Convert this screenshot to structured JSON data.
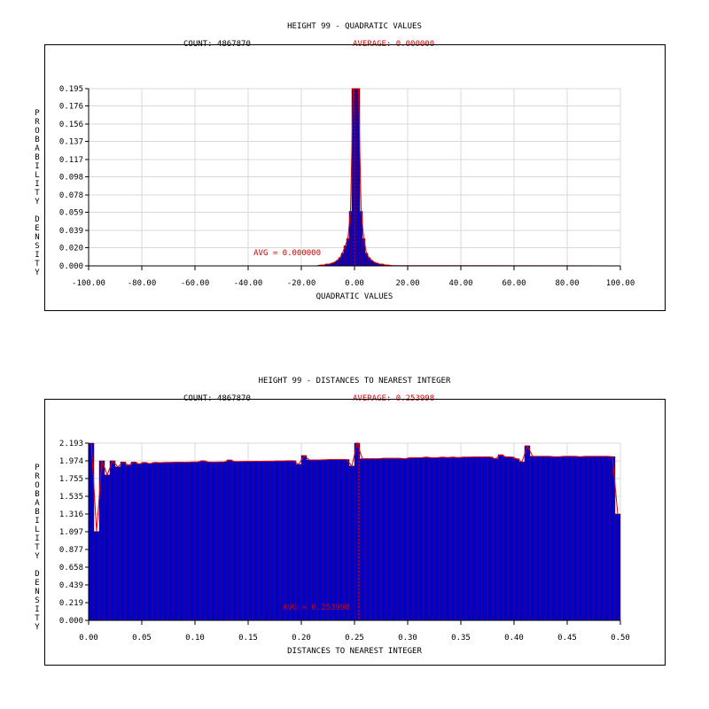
{
  "colors": {
    "bar_fill": "#0000c8",
    "bar_edge": "#800000",
    "curve": "#e00000",
    "grid": "#d8d8d8",
    "frame": "#000000",
    "avg_text": "#d00000"
  },
  "chart_data": [
    {
      "type": "bar",
      "title": "HEIGHT 99 - QUADRATIC VALUES",
      "count_label": "COUNT: 4867870",
      "average_label": "AVERAGE: 0.000000",
      "avg_marker_label": "AVG = 0.000000",
      "avg_value": 0.0,
      "xlabel": "QUADRATIC VALUES",
      "ylabel": "PROBABILITY DENSITY",
      "ylabel_words": [
        "PROBABILITY",
        "DENSITY"
      ],
      "xlim": [
        -100,
        100
      ],
      "ylim": [
        0,
        0.195
      ],
      "x_ticks": [
        -100,
        -80,
        -60,
        -40,
        -20,
        0,
        20,
        40,
        60,
        80,
        100
      ],
      "x_tick_labels": [
        "-100.00",
        "-80.00",
        "-60.00",
        "-40.00",
        "-20.00",
        "0.00",
        "20.00",
        "40.00",
        "60.00",
        "80.00",
        "100.00"
      ],
      "y_ticks": [
        0,
        0.02,
        0.039,
        0.059,
        0.078,
        0.098,
        0.117,
        0.137,
        0.156,
        0.176,
        0.195
      ],
      "y_tick_labels": [
        "0.000",
        "0.020",
        "0.039",
        "0.059",
        "0.078",
        "0.098",
        "0.117",
        "0.137",
        "0.156",
        "0.176",
        "0.195"
      ],
      "bin_width": 1,
      "bin_starts": [
        -14,
        -13,
        -12,
        -11,
        -10,
        -9,
        -8,
        -7,
        -6,
        -5,
        -4,
        -3,
        -2,
        -1,
        0,
        1,
        2,
        3,
        4,
        5,
        6,
        7,
        8,
        9,
        10,
        11,
        12,
        13,
        14
      ],
      "values": [
        0.0005,
        0.001,
        0.001,
        0.002,
        0.002,
        0.003,
        0.004,
        0.006,
        0.009,
        0.014,
        0.022,
        0.03,
        0.06,
        0.195,
        0.195,
        0.195,
        0.06,
        0.03,
        0.014,
        0.009,
        0.006,
        0.004,
        0.003,
        0.002,
        0.002,
        0.001,
        0.001,
        0.0005,
        0.0003
      ],
      "grid": true
    },
    {
      "type": "bar",
      "title": "HEIGHT 99 - DISTANCES TO NEAREST INTEGER",
      "count_label": "COUNT: 4867870",
      "average_label": "AVERAGE: 0.253998",
      "avg_marker_label": "AVG = 0.253998",
      "avg_value": 0.253998,
      "xlabel": "DISTANCES TO NEAREST INTEGER",
      "ylabel": "PROBABILITY DENSITY",
      "ylabel_words": [
        "PROBABILITY",
        "DENSITY"
      ],
      "xlim": [
        0,
        0.5
      ],
      "ylim": [
        0,
        2.193
      ],
      "x_ticks": [
        0,
        0.05,
        0.1,
        0.15,
        0.2,
        0.25,
        0.3,
        0.35,
        0.4,
        0.45,
        0.5
      ],
      "x_tick_labels": [
        "0.00",
        "0.05",
        "0.10",
        "0.15",
        "0.20",
        "0.25",
        "0.30",
        "0.35",
        "0.40",
        "0.45",
        "0.50"
      ],
      "y_ticks": [
        0,
        0.219,
        0.439,
        0.658,
        0.877,
        1.097,
        1.316,
        1.535,
        1.755,
        1.974,
        2.193
      ],
      "y_tick_labels": [
        "0.000",
        "0.219",
        "0.439",
        "0.658",
        "0.877",
        "1.097",
        "1.316",
        "1.535",
        "1.755",
        "1.974",
        "2.193"
      ],
      "bin_width": 0.005,
      "bin_starts": [
        0.0,
        0.005,
        0.01,
        0.015,
        0.02,
        0.025,
        0.03,
        0.035,
        0.04,
        0.045,
        0.05,
        0.055,
        0.06,
        0.065,
        0.07,
        0.075,
        0.08,
        0.085,
        0.09,
        0.095,
        0.1,
        0.105,
        0.11,
        0.115,
        0.12,
        0.125,
        0.13,
        0.135,
        0.14,
        0.145,
        0.15,
        0.155,
        0.16,
        0.165,
        0.17,
        0.175,
        0.18,
        0.185,
        0.19,
        0.195,
        0.2,
        0.205,
        0.21,
        0.215,
        0.22,
        0.225,
        0.23,
        0.235,
        0.24,
        0.245,
        0.25,
        0.255,
        0.26,
        0.265,
        0.27,
        0.275,
        0.28,
        0.285,
        0.29,
        0.295,
        0.3,
        0.305,
        0.31,
        0.315,
        0.32,
        0.325,
        0.33,
        0.335,
        0.34,
        0.345,
        0.35,
        0.355,
        0.36,
        0.365,
        0.37,
        0.375,
        0.38,
        0.385,
        0.39,
        0.395,
        0.4,
        0.405,
        0.41,
        0.415,
        0.42,
        0.425,
        0.43,
        0.435,
        0.44,
        0.445,
        0.45,
        0.455,
        0.46,
        0.465,
        0.47,
        0.475,
        0.48,
        0.485,
        0.49,
        0.495
      ],
      "values": [
        2.193,
        1.1,
        1.974,
        1.8,
        1.974,
        1.9,
        1.96,
        1.92,
        1.96,
        1.935,
        1.955,
        1.94,
        1.955,
        1.95,
        1.955,
        1.955,
        1.957,
        1.957,
        1.957,
        1.96,
        1.96,
        1.975,
        1.96,
        1.958,
        1.96,
        1.96,
        1.985,
        1.965,
        1.965,
        1.967,
        1.967,
        1.968,
        1.968,
        1.97,
        1.97,
        1.972,
        1.972,
        1.975,
        1.975,
        1.93,
        2.04,
        1.985,
        1.985,
        1.985,
        1.987,
        1.99,
        1.99,
        1.99,
        1.99,
        1.91,
        2.193,
        2.0,
        2.0,
        2.0,
        2.0,
        2.005,
        2.005,
        2.005,
        2.005,
        2.0,
        2.012,
        2.012,
        2.012,
        2.02,
        2.012,
        2.012,
        2.02,
        2.015,
        2.02,
        2.015,
        2.02,
        2.02,
        2.022,
        2.022,
        2.022,
        2.022,
        2.0,
        2.05,
        2.022,
        2.022,
        2.0,
        1.96,
        2.16,
        2.03,
        2.03,
        2.03,
        2.03,
        2.025,
        2.025,
        2.03,
        2.03,
        2.03,
        2.025,
        2.03,
        2.03,
        2.03,
        2.03,
        2.03,
        2.025,
        1.316
      ],
      "grid": true
    }
  ]
}
